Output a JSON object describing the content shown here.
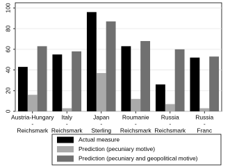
{
  "chart_data": {
    "type": "bar",
    "categories": [
      [
        "Austria-Hungary",
        "-",
        "Reichsmark"
      ],
      [
        "Italy",
        "-",
        "Reichsmark"
      ],
      [
        "Japan",
        "-",
        "Sterling"
      ],
      [
        "Roumanie",
        "-",
        "Reichsmark"
      ],
      [
        "Russia",
        "-",
        "Reichsmark"
      ],
      [
        "Russia",
        "-",
        "Franc"
      ]
    ],
    "series": [
      {
        "name": "Actual measure",
        "color": "#000000",
        "values": [
          43,
          55,
          96,
          63,
          26,
          52
        ]
      },
      {
        "name": "Prediction (pecuniary motive)",
        "color": "#aaaaaa",
        "values": [
          16,
          3,
          37,
          12,
          7,
          3
        ]
      },
      {
        "name": "Prediction (pecuniary and geopolitical motive)",
        "color": "#707070",
        "values": [
          63,
          58,
          87,
          68,
          60,
          53
        ]
      }
    ],
    "ylim": [
      0,
      105
    ],
    "yticks": [
      0,
      20,
      40,
      60,
      80,
      100
    ],
    "grid": true
  }
}
